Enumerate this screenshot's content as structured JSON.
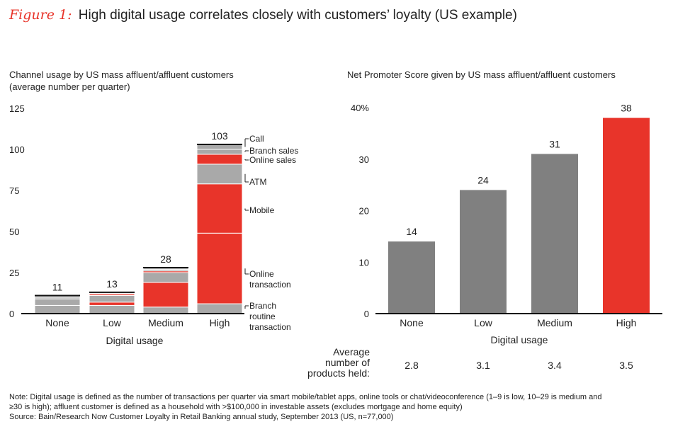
{
  "figure": {
    "label": "Figure 1:",
    "title": "High digital usage correlates closely with customers’ loyalty (US example)"
  },
  "chart_data": [
    {
      "type": "bar",
      "stacked": true,
      "title_line1": "Channel usage by US mass affluent/affluent customers",
      "title_line2": "(average number per quarter)",
      "xlabel": "Digital usage",
      "categories": [
        "None",
        "Low",
        "Medium",
        "High"
      ],
      "y_ticks": [
        "0",
        "25",
        "50",
        "75",
        "100",
        "125"
      ],
      "ylim": [
        0,
        125
      ],
      "totals": [
        11,
        13,
        28,
        103
      ],
      "total_labels": [
        "11",
        "13",
        "28",
        "103"
      ],
      "series": [
        {
          "name": "Branch routine transaction",
          "color": "#a9a9a9",
          "values": [
            5,
            5,
            4,
            6
          ]
        },
        {
          "name": "Online transaction",
          "color": "#e8342a",
          "values": [
            0,
            2,
            15,
            43
          ]
        },
        {
          "name": "Mobile",
          "color": "#e8342a",
          "values": [
            0,
            0,
            0,
            30
          ]
        },
        {
          "name": "ATM",
          "color": "#a9a9a9",
          "values": [
            4,
            4,
            6,
            12
          ]
        },
        {
          "name": "Online sales",
          "color": "#e8342a",
          "values": [
            0,
            1,
            1,
            6
          ]
        },
        {
          "name": "Branch sales",
          "color": "#a9a9a9",
          "values": [
            1,
            0.5,
            1,
            3
          ]
        },
        {
          "name": "Call",
          "color": "#a9a9a9",
          "values": [
            1,
            0.5,
            1,
            3
          ]
        }
      ],
      "segment_labels": [
        {
          "text": "Call"
        },
        {
          "text": "Branch sales"
        },
        {
          "text": "Online sales"
        },
        {
          "text": "ATM"
        },
        {
          "text": "Mobile"
        },
        {
          "text": "Online\ntransaction"
        },
        {
          "text": "Branch\nroutine\ntransaction"
        }
      ]
    },
    {
      "type": "bar",
      "title": "Net Promoter Score given by US mass affluent/affluent customers",
      "xlabel": "Digital usage",
      "categories": [
        "None",
        "Low",
        "Medium",
        "High"
      ],
      "values": [
        14,
        24,
        31,
        38
      ],
      "value_labels": [
        "14",
        "24",
        "31",
        "38"
      ],
      "colors": [
        "#808080",
        "#808080",
        "#808080",
        "#e8342a"
      ],
      "y_ticks": [
        "0",
        "10",
        "20",
        "30",
        "40%"
      ],
      "ylim": [
        0,
        40
      ],
      "products_label": "Average\nnumber of\nproducts held:",
      "products_values": [
        "2.8",
        "3.1",
        "3.4",
        "3.5"
      ]
    }
  ],
  "note": {
    "line1": "Note: Digital usage is defined as the number of transactions per quarter via smart mobile/tablet apps, online tools or chat/videoconference (1–9 is low, 10–29 is medium and",
    "line2": "≥30 is high); affluent customer is defined as a household with >$100,000 in investable assets (excludes mortgage and home equity)",
    "line3": "Source: Bain/Research Now Customer Loyalty in Retail Banking annual study, September 2013 (US, n=77,000)"
  }
}
